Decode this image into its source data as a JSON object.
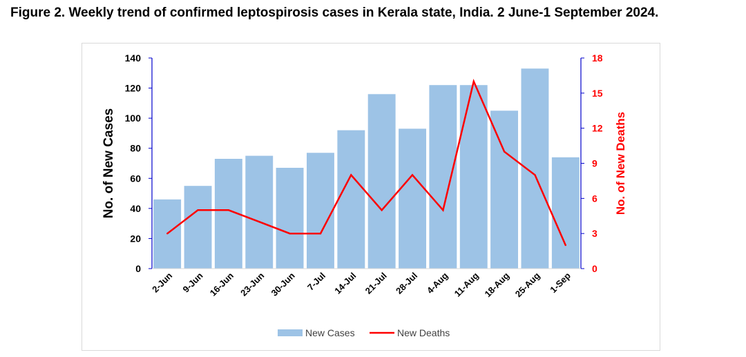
{
  "figure": {
    "title": "Figure 2. Weekly trend of confirmed leptospirosis cases in Kerala state, India. 2 June-1 September 2024."
  },
  "chart_data": {
    "type": "bar",
    "categories": [
      "2-Jun",
      "9-Jun",
      "16-Jun",
      "23-Jun",
      "30-Jun",
      "7-Jul",
      "14-Jul",
      "21-Jul",
      "28-Jul",
      "4-Aug",
      "11-Aug",
      "18-Aug",
      "25-Aug",
      "1-Sep"
    ],
    "series": [
      {
        "name": "New Cases",
        "type": "bar",
        "axis": "left",
        "color": "#9dc3e6",
        "values": [
          46,
          55,
          73,
          75,
          67,
          77,
          92,
          116,
          93,
          122,
          122,
          105,
          133,
          74
        ]
      },
      {
        "name": "New Deaths",
        "type": "line",
        "axis": "right",
        "color": "#ff0000",
        "values": [
          3,
          5,
          5,
          4,
          3,
          3,
          8,
          5,
          8,
          5,
          16,
          10,
          8,
          2
        ]
      }
    ],
    "ylabel": "No. of New Cases",
    "y2label": "No. of New Deaths",
    "ylim": [
      0,
      140
    ],
    "y2lim": [
      0,
      18
    ],
    "yticks": [
      "0",
      "20",
      "40",
      "60",
      "80",
      "100",
      "120",
      "140"
    ],
    "y2ticks": [
      "0",
      "3",
      "6",
      "9",
      "12",
      "15",
      "18"
    ],
    "axis_color": "#0000cc",
    "grid": false,
    "legend_position": "bottom"
  }
}
